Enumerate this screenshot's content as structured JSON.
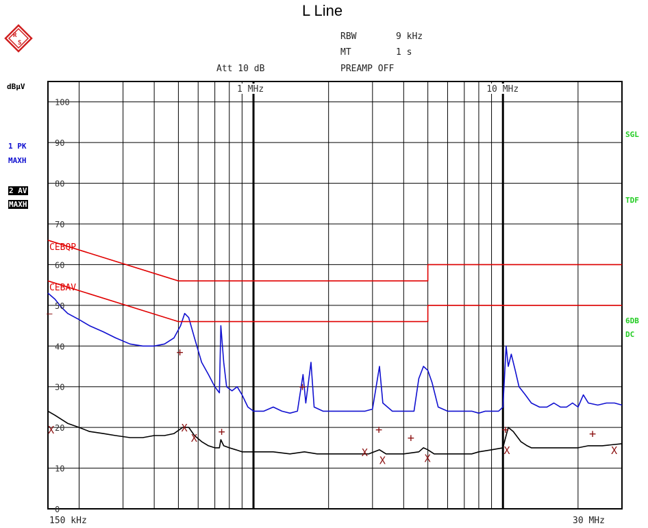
{
  "title": "L Line",
  "header": {
    "rbw_label": "RBW",
    "rbw_value": "9 kHz",
    "mt_label": "MT",
    "mt_value": "1 s",
    "att": "Att 10 dB",
    "preamp": "PREAMP OFF"
  },
  "left_panel": {
    "unit": "dBµV",
    "trace1_line1": "1 PK",
    "trace1_line2": "MAXH",
    "trace2_line1": "2 AV",
    "trace2_line2": "MAXH"
  },
  "right_panel": {
    "sgl": "SGL",
    "tdf": "TDF",
    "db6": "6DB",
    "dc": "DC"
  },
  "colors": {
    "trace1": "#1010d0",
    "trace2": "#000000",
    "limits": "#e00000",
    "markers": "#8b1010",
    "status": "#22cc22"
  },
  "chart_data": {
    "type": "line",
    "title": "L Line",
    "x_scale": "log",
    "xlim": [
      0.15,
      30
    ],
    "ylim": [
      0,
      105
    ],
    "xlabel_start": "150 kHz",
    "xlabel_end": "30 MHz",
    "decade_labels": [
      {
        "x": 1,
        "label": "1 MHz"
      },
      {
        "x": 10,
        "label": "10 MHz"
      }
    ],
    "y_ticks": [
      0,
      10,
      20,
      30,
      40,
      50,
      60,
      70,
      80,
      90,
      100
    ],
    "x_grid": [
      0.2,
      0.3,
      0.4,
      0.5,
      0.6,
      0.7,
      0.8,
      0.9,
      1,
      2,
      3,
      4,
      5,
      6,
      7,
      8,
      9,
      10,
      20
    ],
    "series": [
      {
        "name": "1 PK MAXH",
        "points": [
          [
            0.15,
            53
          ],
          [
            0.16,
            51.5
          ],
          [
            0.17,
            49.5
          ],
          [
            0.18,
            48
          ],
          [
            0.2,
            46.5
          ],
          [
            0.22,
            45
          ],
          [
            0.25,
            43.5
          ],
          [
            0.28,
            42
          ],
          [
            0.32,
            40.5
          ],
          [
            0.36,
            40
          ],
          [
            0.4,
            40
          ],
          [
            0.44,
            40.5
          ],
          [
            0.48,
            42
          ],
          [
            0.51,
            45
          ],
          [
            0.53,
            48
          ],
          [
            0.55,
            47
          ],
          [
            0.58,
            42
          ],
          [
            0.62,
            36
          ],
          [
            0.66,
            33
          ],
          [
            0.7,
            30
          ],
          [
            0.73,
            28.5
          ],
          [
            0.74,
            45
          ],
          [
            0.76,
            36
          ],
          [
            0.78,
            30
          ],
          [
            0.82,
            29
          ],
          [
            0.86,
            30
          ],
          [
            0.9,
            28
          ],
          [
            0.95,
            25
          ],
          [
            1.0,
            24
          ],
          [
            1.1,
            24
          ],
          [
            1.2,
            25
          ],
          [
            1.3,
            24
          ],
          [
            1.4,
            23.5
          ],
          [
            1.5,
            24
          ],
          [
            1.58,
            33
          ],
          [
            1.62,
            26
          ],
          [
            1.7,
            36
          ],
          [
            1.75,
            25
          ],
          [
            1.9,
            24
          ],
          [
            2.1,
            24
          ],
          [
            2.4,
            24
          ],
          [
            2.8,
            24
          ],
          [
            3.0,
            24.5
          ],
          [
            3.2,
            35
          ],
          [
            3.3,
            26
          ],
          [
            3.6,
            24
          ],
          [
            4.0,
            24
          ],
          [
            4.4,
            24
          ],
          [
            4.6,
            32
          ],
          [
            4.8,
            35
          ],
          [
            5.0,
            34
          ],
          [
            5.2,
            31
          ],
          [
            5.5,
            25
          ],
          [
            6.0,
            24
          ],
          [
            6.5,
            24
          ],
          [
            7.0,
            24
          ],
          [
            7.5,
            24
          ],
          [
            8.0,
            23.5
          ],
          [
            8.5,
            24
          ],
          [
            9.0,
            24
          ],
          [
            9.6,
            24
          ],
          [
            10.0,
            25
          ],
          [
            10.3,
            40
          ],
          [
            10.5,
            35
          ],
          [
            10.8,
            38
          ],
          [
            11.2,
            34
          ],
          [
            11.6,
            30
          ],
          [
            12.3,
            28
          ],
          [
            13,
            26
          ],
          [
            14,
            25
          ],
          [
            15,
            25
          ],
          [
            16,
            26
          ],
          [
            17,
            25
          ],
          [
            18,
            25
          ],
          [
            19,
            26
          ],
          [
            20,
            25
          ],
          [
            21,
            28
          ],
          [
            22,
            26
          ],
          [
            24,
            25.5
          ],
          [
            26,
            26
          ],
          [
            28,
            26
          ],
          [
            30,
            25.5
          ]
        ]
      },
      {
        "name": "2 AV MAXH",
        "points": [
          [
            0.15,
            24
          ],
          [
            0.16,
            23
          ],
          [
            0.18,
            21
          ],
          [
            0.2,
            20
          ],
          [
            0.22,
            19
          ],
          [
            0.25,
            18.5
          ],
          [
            0.28,
            18
          ],
          [
            0.32,
            17.5
          ],
          [
            0.36,
            17.5
          ],
          [
            0.4,
            18
          ],
          [
            0.44,
            18
          ],
          [
            0.48,
            18.5
          ],
          [
            0.52,
            20
          ],
          [
            0.55,
            20
          ],
          [
            0.58,
            18
          ],
          [
            0.62,
            16.5
          ],
          [
            0.66,
            15.5
          ],
          [
            0.7,
            15
          ],
          [
            0.73,
            15
          ],
          [
            0.74,
            17
          ],
          [
            0.76,
            15.5
          ],
          [
            0.8,
            15
          ],
          [
            0.85,
            14.5
          ],
          [
            0.9,
            14
          ],
          [
            1.0,
            14
          ],
          [
            1.2,
            14
          ],
          [
            1.4,
            13.5
          ],
          [
            1.6,
            14
          ],
          [
            1.8,
            13.5
          ],
          [
            2.0,
            13.5
          ],
          [
            2.5,
            13.5
          ],
          [
            2.9,
            13.5
          ],
          [
            3.2,
            14.5
          ],
          [
            3.4,
            13.5
          ],
          [
            4.0,
            13.5
          ],
          [
            4.6,
            14
          ],
          [
            4.8,
            15
          ],
          [
            5.0,
            14.5
          ],
          [
            5.3,
            13.5
          ],
          [
            6.0,
            13.5
          ],
          [
            7.0,
            13.5
          ],
          [
            7.5,
            13.5
          ],
          [
            8.0,
            14
          ],
          [
            9.0,
            14.5
          ],
          [
            10.0,
            15
          ],
          [
            10.5,
            20
          ],
          [
            11.0,
            19
          ],
          [
            11.8,
            16.5
          ],
          [
            12.5,
            15.5
          ],
          [
            13,
            15
          ],
          [
            15,
            15
          ],
          [
            18,
            15
          ],
          [
            20,
            15
          ],
          [
            22,
            15.5
          ],
          [
            25,
            15.5
          ],
          [
            30,
            16
          ]
        ]
      },
      {
        "name": "CEBQP",
        "points": [
          [
            0.15,
            66
          ],
          [
            0.5,
            56
          ],
          [
            5,
            56
          ],
          [
            5,
            60
          ],
          [
            30,
            60
          ]
        ]
      },
      {
        "name": "CEBAV",
        "points": [
          [
            0.15,
            56
          ],
          [
            0.5,
            46
          ],
          [
            5,
            46
          ],
          [
            5,
            50
          ],
          [
            30,
            50
          ]
        ]
      }
    ],
    "plus_markers": [
      [
        0.51,
        38.5
      ],
      [
        0.75,
        19
      ],
      [
        1.58,
        30
      ],
      [
        3.2,
        19.5
      ],
      [
        4.3,
        17.5
      ],
      [
        10.3,
        19.5
      ],
      [
        23,
        18.5
      ]
    ],
    "x_markers": [
      [
        0.155,
        19.5
      ],
      [
        0.53,
        20
      ],
      [
        0.58,
        17.5
      ],
      [
        2.8,
        14
      ],
      [
        3.3,
        12
      ],
      [
        5.0,
        12.5
      ],
      [
        10.4,
        14.5
      ],
      [
        28,
        14.5
      ]
    ],
    "limit_labels": [
      "CEBQP",
      "CEBAV"
    ],
    "edge_marker": "—"
  }
}
